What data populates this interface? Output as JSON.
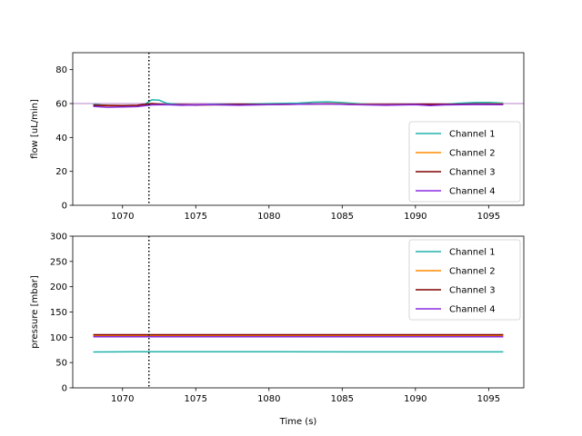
{
  "chart_data": [
    {
      "type": "line",
      "ylabel": "flow [uL/min]",
      "xlabel": "",
      "xlim": [
        1066.6,
        1097.4
      ],
      "ylim": [
        0,
        90
      ],
      "xticks": [
        1070,
        1075,
        1080,
        1085,
        1090,
        1095
      ],
      "yticks": [
        0,
        20,
        40,
        60,
        80
      ],
      "reference_hline": 60,
      "marker_vline": 1071.8,
      "legend": "lower-right",
      "series": [
        {
          "name": "Channel 1",
          "color": "#20b2aa",
          "x": [
            1068,
            1069,
            1070,
            1071,
            1071.5,
            1072,
            1072.5,
            1073,
            1074,
            1075,
            1076,
            1078,
            1080,
            1082,
            1083,
            1084,
            1085,
            1086,
            1087,
            1088,
            1090,
            1091,
            1092,
            1093,
            1094,
            1095,
            1096
          ],
          "y": [
            59.5,
            58.8,
            58.6,
            58.8,
            59.5,
            62.2,
            62.0,
            60.2,
            59.3,
            59.0,
            59.5,
            59.6,
            60.0,
            60.3,
            60.8,
            61.0,
            60.6,
            60.0,
            59.5,
            59.3,
            59.5,
            59.0,
            59.5,
            60.2,
            60.6,
            60.7,
            60.3
          ]
        },
        {
          "name": "Channel 2",
          "color": "#ff8c00",
          "x": [
            1068,
            1070,
            1071,
            1072,
            1073,
            1075,
            1078,
            1080,
            1082,
            1084,
            1086,
            1088,
            1090,
            1092,
            1094,
            1096
          ],
          "y": [
            58.8,
            58.6,
            58.7,
            59.6,
            59.4,
            59.1,
            59.3,
            59.4,
            59.6,
            60.0,
            59.6,
            59.4,
            59.5,
            59.3,
            59.6,
            59.8
          ]
        },
        {
          "name": "Channel 3",
          "color": "#800000",
          "x": [
            1068,
            1070,
            1071,
            1072,
            1073,
            1075,
            1078,
            1080,
            1082,
            1084,
            1086,
            1088,
            1090,
            1092,
            1094,
            1096
          ],
          "y": [
            59.0,
            58.8,
            59.0,
            60.0,
            59.4,
            59.2,
            59.5,
            59.4,
            59.6,
            59.8,
            59.4,
            59.3,
            59.6,
            59.5,
            59.7,
            59.6
          ]
        },
        {
          "name": "Channel 4",
          "color": "#8a2be2",
          "x": [
            1068,
            1069,
            1070,
            1071,
            1072,
            1073,
            1074,
            1076,
            1078,
            1080,
            1082,
            1084,
            1086,
            1088,
            1090,
            1091,
            1092,
            1094,
            1096
          ],
          "y": [
            58.3,
            57.8,
            58.0,
            58.2,
            59.2,
            59.3,
            59.0,
            59.3,
            59.0,
            59.3,
            59.6,
            59.8,
            59.3,
            59.0,
            59.3,
            58.8,
            59.2,
            59.4,
            59.3
          ]
        }
      ]
    },
    {
      "type": "line",
      "ylabel": "pressure [mbar]",
      "xlabel": "Time (s)",
      "xlim": [
        1066.6,
        1097.4
      ],
      "ylim": [
        0,
        300
      ],
      "xticks": [
        1070,
        1075,
        1080,
        1085,
        1090,
        1095
      ],
      "yticks": [
        0,
        50,
        100,
        150,
        200,
        250,
        300
      ],
      "marker_vline": 1071.8,
      "legend": "upper-right",
      "series": [
        {
          "name": "Channel 1",
          "color": "#20b2aa",
          "x": [
            1068,
            1071,
            1073,
            1080,
            1090,
            1096
          ],
          "y": [
            71,
            71.5,
            71.3,
            71.3,
            71.2,
            71.2
          ]
        },
        {
          "name": "Channel 2",
          "color": "#ff8c00",
          "x": [
            1068,
            1096
          ],
          "y": [
            103,
            103
          ]
        },
        {
          "name": "Channel 3",
          "color": "#800000",
          "x": [
            1068,
            1096
          ],
          "y": [
            105,
            105
          ]
        },
        {
          "name": "Channel 4",
          "color": "#8a2be2",
          "x": [
            1068,
            1096
          ],
          "y": [
            101,
            101
          ]
        }
      ]
    }
  ]
}
